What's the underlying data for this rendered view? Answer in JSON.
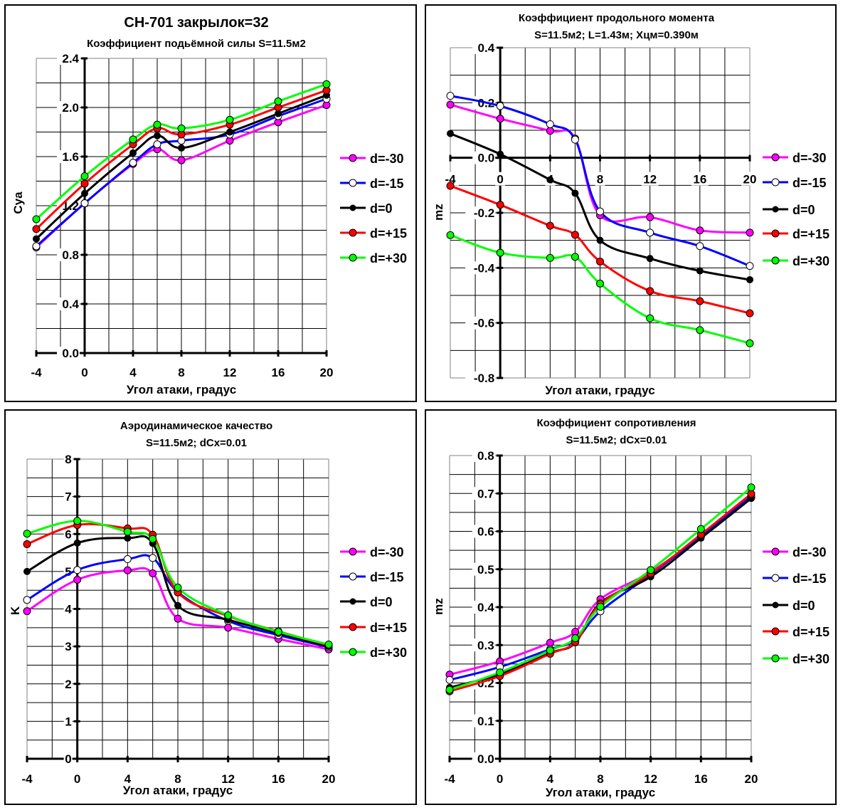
{
  "legend_series": [
    {
      "name": "d=-30",
      "line": "#FF00FF",
      "marker": "#FF00FF"
    },
    {
      "name": "d=-15",
      "line": "#0000FF",
      "marker": "#FFFFFF"
    },
    {
      "name": "d=0",
      "line": "#000000",
      "marker": "#000000"
    },
    {
      "name": "d=+15",
      "line": "#FF0000",
      "marker": "#FF0000"
    },
    {
      "name": "d=+30",
      "line": "#00FF00",
      "marker": "#00FF00"
    }
  ],
  "chart_data": [
    {
      "type": "line",
      "supertitle": "CH-701 закрылок=32",
      "title": "Коэффициент подьёмной силы S=11.5м2",
      "subtitle": "",
      "xlabel": "Угол атаки, градус",
      "ylabel": "Cya",
      "xlim": [
        -4,
        20
      ],
      "ylim": [
        0,
        2.4
      ],
      "xticks": [
        -4,
        0,
        4,
        8,
        12,
        16,
        20
      ],
      "xtick_labels": [
        "-4",
        "0",
        "4",
        "8",
        "12",
        "16",
        "20"
      ],
      "yticks": [
        0,
        0.4,
        0.8,
        1.2,
        1.6,
        2.0,
        2.4
      ],
      "ytick_labels": [
        "0.0",
        "0.4",
        "0.8",
        "1.2",
        "1.6",
        "2.0",
        "2.4"
      ],
      "grid": true,
      "legend": "right",
      "x": [
        -4,
        0,
        4,
        6,
        8,
        12,
        16,
        20
      ],
      "series": [
        {
          "name": "d=-30",
          "values": [
            0.86,
            1.22,
            1.54,
            1.66,
            1.57,
            1.73,
            1.88,
            2.02
          ]
        },
        {
          "name": "d=-15",
          "values": [
            0.87,
            1.22,
            1.55,
            1.7,
            1.73,
            1.78,
            1.93,
            2.07
          ]
        },
        {
          "name": "d=0",
          "values": [
            0.93,
            1.3,
            1.63,
            1.77,
            1.67,
            1.8,
            1.95,
            2.1
          ]
        },
        {
          "name": "d=+15",
          "values": [
            1.01,
            1.38,
            1.7,
            1.83,
            1.78,
            1.86,
            2.0,
            2.14
          ]
        },
        {
          "name": "d=+30",
          "values": [
            1.09,
            1.44,
            1.74,
            1.86,
            1.83,
            1.9,
            2.05,
            2.19
          ]
        }
      ]
    },
    {
      "type": "line",
      "supertitle": "",
      "title": "Коэффициент продольного момента",
      "subtitle": "S=11.5м2; L=1.43м; Xцм=0.390м",
      "xlabel": "Угол атаки, градус",
      "ylabel": "mz",
      "xlim": [
        -4,
        20
      ],
      "ylim": [
        -0.8,
        0.4
      ],
      "xticks": [
        -4,
        0,
        4,
        8,
        12,
        16,
        20
      ],
      "xtick_labels": [
        "-4",
        "0",
        "4",
        "8",
        "12",
        "16",
        "20"
      ],
      "yticks": [
        -0.8,
        -0.6,
        -0.4,
        -0.2,
        0.0,
        0.2,
        0.4
      ],
      "ytick_labels": [
        "-0.8",
        "-0.6",
        "-0.4",
        "-0.2",
        "0.0",
        "0.2",
        "0.4"
      ],
      "grid": true,
      "legend": "right",
      "x": [
        -4,
        0,
        4,
        6,
        8,
        12,
        16,
        20
      ],
      "series": [
        {
          "name": "d=-30",
          "values": [
            0.193,
            0.142,
            0.098,
            0.07,
            -0.209,
            -0.216,
            -0.264,
            -0.272
          ]
        },
        {
          "name": "d=-15",
          "values": [
            0.225,
            0.188,
            0.122,
            0.066,
            -0.195,
            -0.272,
            -0.321,
            -0.393
          ]
        },
        {
          "name": "d=0",
          "values": [
            0.088,
            0.013,
            -0.08,
            -0.129,
            -0.3,
            -0.366,
            -0.411,
            -0.443
          ]
        },
        {
          "name": "d=+15",
          "values": [
            -0.102,
            -0.171,
            -0.247,
            -0.28,
            -0.377,
            -0.484,
            -0.521,
            -0.565
          ]
        },
        {
          "name": "d=+30",
          "values": [
            -0.281,
            -0.345,
            -0.364,
            -0.36,
            -0.457,
            -0.583,
            -0.626,
            -0.674
          ]
        }
      ]
    },
    {
      "type": "line",
      "supertitle": "",
      "title": "Аэродинамическое качество",
      "subtitle": "S=11.5м2; dCx=0.01",
      "xlabel": "Угол атаки, градус",
      "ylabel": "K",
      "xlim": [
        -4,
        20
      ],
      "ylim": [
        0,
        8
      ],
      "xticks": [
        -4,
        0,
        4,
        8,
        12,
        16,
        20
      ],
      "xtick_labels": [
        "-4",
        "0",
        "4",
        "8",
        "12",
        "16",
        "20"
      ],
      "yticks": [
        0,
        1,
        2,
        3,
        4,
        5,
        6,
        7,
        8
      ],
      "ytick_labels": [
        "0",
        "1",
        "2",
        "3",
        "4",
        "5",
        "6",
        "7",
        "8"
      ],
      "grid": true,
      "legend": "right",
      "x": [
        -4,
        0,
        4,
        6,
        8,
        12,
        16,
        20
      ],
      "series": [
        {
          "name": "d=-30",
          "values": [
            3.94,
            4.78,
            5.03,
            4.95,
            3.74,
            3.5,
            3.2,
            2.92
          ]
        },
        {
          "name": "d=-15",
          "values": [
            4.24,
            5.04,
            5.33,
            5.36,
            4.45,
            3.68,
            3.3,
            2.98
          ]
        },
        {
          "name": "d=0",
          "values": [
            5.0,
            5.76,
            5.89,
            5.75,
            4.09,
            3.71,
            3.35,
            3.0
          ]
        },
        {
          "name": "d=+15",
          "values": [
            5.73,
            6.24,
            6.15,
            5.98,
            4.44,
            3.81,
            3.4,
            3.03
          ]
        },
        {
          "name": "d=+30",
          "values": [
            6.01,
            6.35,
            6.06,
            5.87,
            4.57,
            3.83,
            3.39,
            3.05
          ]
        }
      ]
    },
    {
      "type": "line",
      "supertitle": "",
      "title": "Коэффициент сопротивления",
      "subtitle": "S=11.5м2; dCx=0.01",
      "xlabel": "Угол атаки, градус",
      "ylabel": "mz",
      "xlim": [
        -4,
        20
      ],
      "ylim": [
        0,
        0.8
      ],
      "xticks": [
        -4,
        0,
        4,
        8,
        12,
        16,
        20
      ],
      "xtick_labels": [
        "-4",
        "0",
        "4",
        "8",
        "12",
        "16",
        "20"
      ],
      "yticks": [
        0,
        0.1,
        0.2,
        0.3,
        0.4,
        0.5,
        0.6,
        0.7,
        0.8
      ],
      "ytick_labels": [
        "0.0",
        "0.1",
        "0.2",
        "0.3",
        "0.4",
        "0.5",
        "0.6",
        "0.7",
        "0.8"
      ],
      "grid": true,
      "legend": "right",
      "x": [
        -4,
        0,
        4,
        6,
        8,
        12,
        16,
        20
      ],
      "series": [
        {
          "name": "d=-30",
          "values": [
            0.222,
            0.257,
            0.306,
            0.335,
            0.421,
            0.493,
            0.587,
            0.689
          ]
        },
        {
          "name": "d=-15",
          "values": [
            0.208,
            0.242,
            0.289,
            0.313,
            0.389,
            0.486,
            0.587,
            0.692
          ]
        },
        {
          "name": "d=0",
          "values": [
            0.188,
            0.223,
            0.279,
            0.306,
            0.411,
            0.48,
            0.582,
            0.687
          ]
        },
        {
          "name": "d=+15",
          "values": [
            0.178,
            0.218,
            0.277,
            0.308,
            0.408,
            0.489,
            0.592,
            0.699
          ]
        },
        {
          "name": "d=+30",
          "values": [
            0.182,
            0.228,
            0.286,
            0.318,
            0.401,
            0.498,
            0.606,
            0.716
          ]
        }
      ]
    }
  ]
}
